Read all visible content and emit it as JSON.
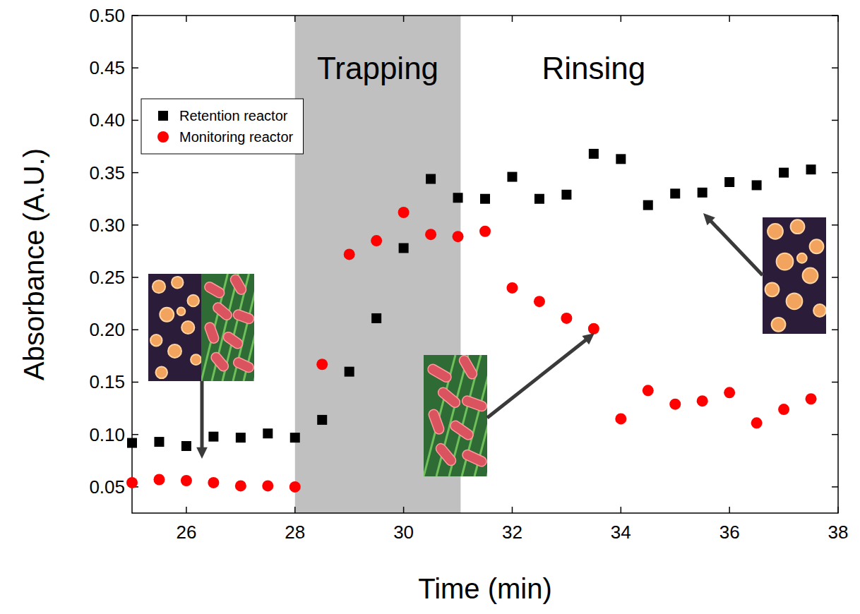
{
  "chart_data": {
    "type": "scatter",
    "x_label": "Time (min)",
    "y_label": "Absorbance (A.U.)",
    "xlim": [
      25,
      38
    ],
    "xticks": [
      26,
      28,
      30,
      32,
      34,
      36,
      38
    ],
    "ylim": [
      0.025,
      0.5
    ],
    "yticks": [
      0.05,
      {
        "value": 0.1,
        "label": "0.10"
      },
      0.15,
      {
        "value": 0.2,
        "label": "0.20"
      },
      0.25,
      {
        "value": 0.3,
        "label": "0.30"
      },
      0.35,
      {
        "value": 0.4,
        "label": "0.40"
      },
      0.45,
      {
        "value": 0.5,
        "label": "0.50"
      }
    ],
    "grid": false,
    "legend": "upper left",
    "annotations": [
      {
        "text": "Trapping",
        "x": [
          28,
          31.05
        ]
      },
      {
        "text": "Rinsing"
      }
    ],
    "x": [
      25,
      25.5,
      26,
      26.5,
      27,
      27.5,
      28,
      28.5,
      29,
      29.5,
      30,
      30.5,
      31,
      31.5,
      32,
      32.5,
      33,
      33.5,
      34,
      34.5,
      35,
      35.5,
      36,
      36.5,
      37,
      37.5
    ],
    "series": [
      {
        "name": "Retention reactor",
        "color": "#000000",
        "marker": "square",
        "values": [
          0.092,
          0.093,
          0.089,
          0.098,
          0.097,
          0.101,
          0.097,
          0.114,
          0.16,
          0.211,
          0.278,
          0.344,
          0.326,
          0.325,
          0.346,
          0.325,
          0.329,
          0.368,
          0.363,
          0.319,
          0.33,
          0.331,
          0.341,
          0.338,
          0.35,
          0.353
        ]
      },
      {
        "name": "Monitoring reactor",
        "color": "#ff0000",
        "marker": "circle",
        "values": [
          0.054,
          0.057,
          0.056,
          0.054,
          0.051,
          0.051,
          0.05,
          0.167,
          0.272,
          0.285,
          0.312,
          0.291,
          0.289,
          0.294,
          0.24,
          0.227,
          0.211,
          0.201,
          0.115,
          0.142,
          0.129,
          0.132,
          0.14,
          0.111,
          0.124,
          0.134
        ]
      }
    ]
  }
}
